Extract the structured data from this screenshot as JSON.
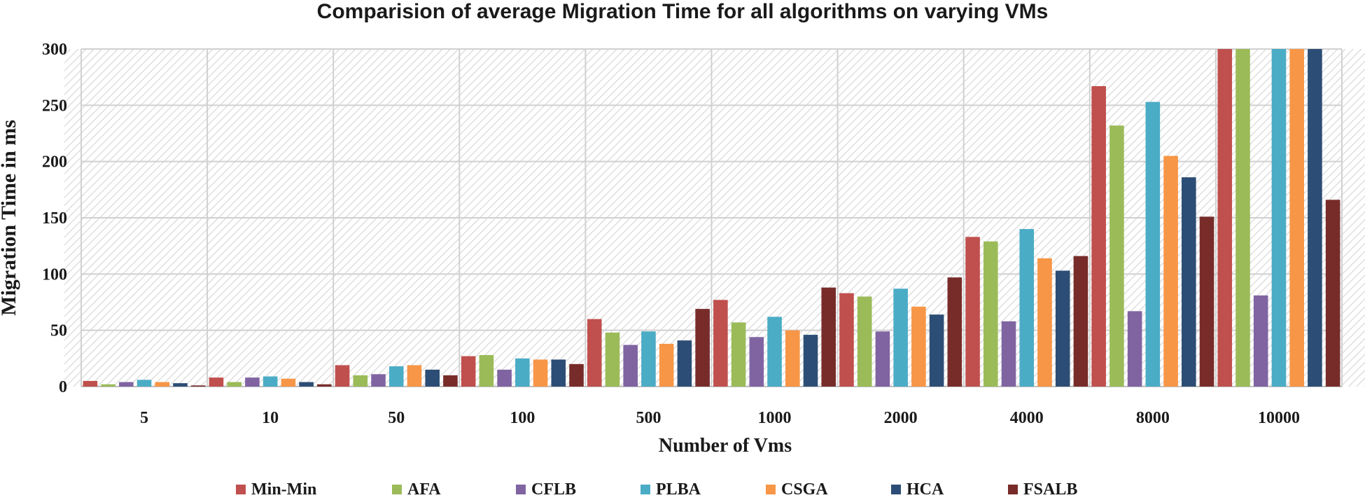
{
  "chart_data": {
    "type": "bar",
    "title": "Comparision of average Migration Time for all algorithms on varying VMs",
    "xlabel": "Number of Vms",
    "ylabel": "Migration Time in ms",
    "ylim": [
      0,
      300
    ],
    "yticks": [
      0,
      50,
      100,
      150,
      200,
      250,
      300
    ],
    "grid": true,
    "legend_position": "bottom",
    "categories": [
      "5",
      "10",
      "50",
      "100",
      "500",
      "1000",
      "2000",
      "4000",
      "8000",
      "10000"
    ],
    "series": [
      {
        "name": "Min-Min",
        "color": "#c0504d",
        "values": [
          5,
          8,
          19,
          27,
          60,
          77,
          83,
          133,
          267,
          300
        ]
      },
      {
        "name": "AFA",
        "color": "#9bbb59",
        "values": [
          2,
          4,
          10,
          28,
          48,
          57,
          80,
          129,
          232,
          300
        ]
      },
      {
        "name": "CFLB",
        "color": "#8064a2",
        "values": [
          4,
          8,
          11,
          15,
          37,
          44,
          49,
          58,
          67,
          81
        ]
      },
      {
        "name": "PLBA",
        "color": "#4bacc6",
        "values": [
          6,
          9,
          18,
          25,
          49,
          62,
          87,
          140,
          253,
          300
        ]
      },
      {
        "name": "CSGA",
        "color": "#f79646",
        "values": [
          4,
          7,
          19,
          24,
          38,
          50,
          71,
          114,
          205,
          300
        ]
      },
      {
        "name": "HCA",
        "color": "#2c4d75",
        "values": [
          3,
          4,
          15,
          24,
          41,
          46,
          64,
          103,
          186,
          300
        ]
      },
      {
        "name": "FSALB",
        "color": "#772c2a",
        "values": [
          1,
          2,
          10,
          20,
          69,
          88,
          97,
          116,
          151,
          166
        ]
      }
    ]
  }
}
